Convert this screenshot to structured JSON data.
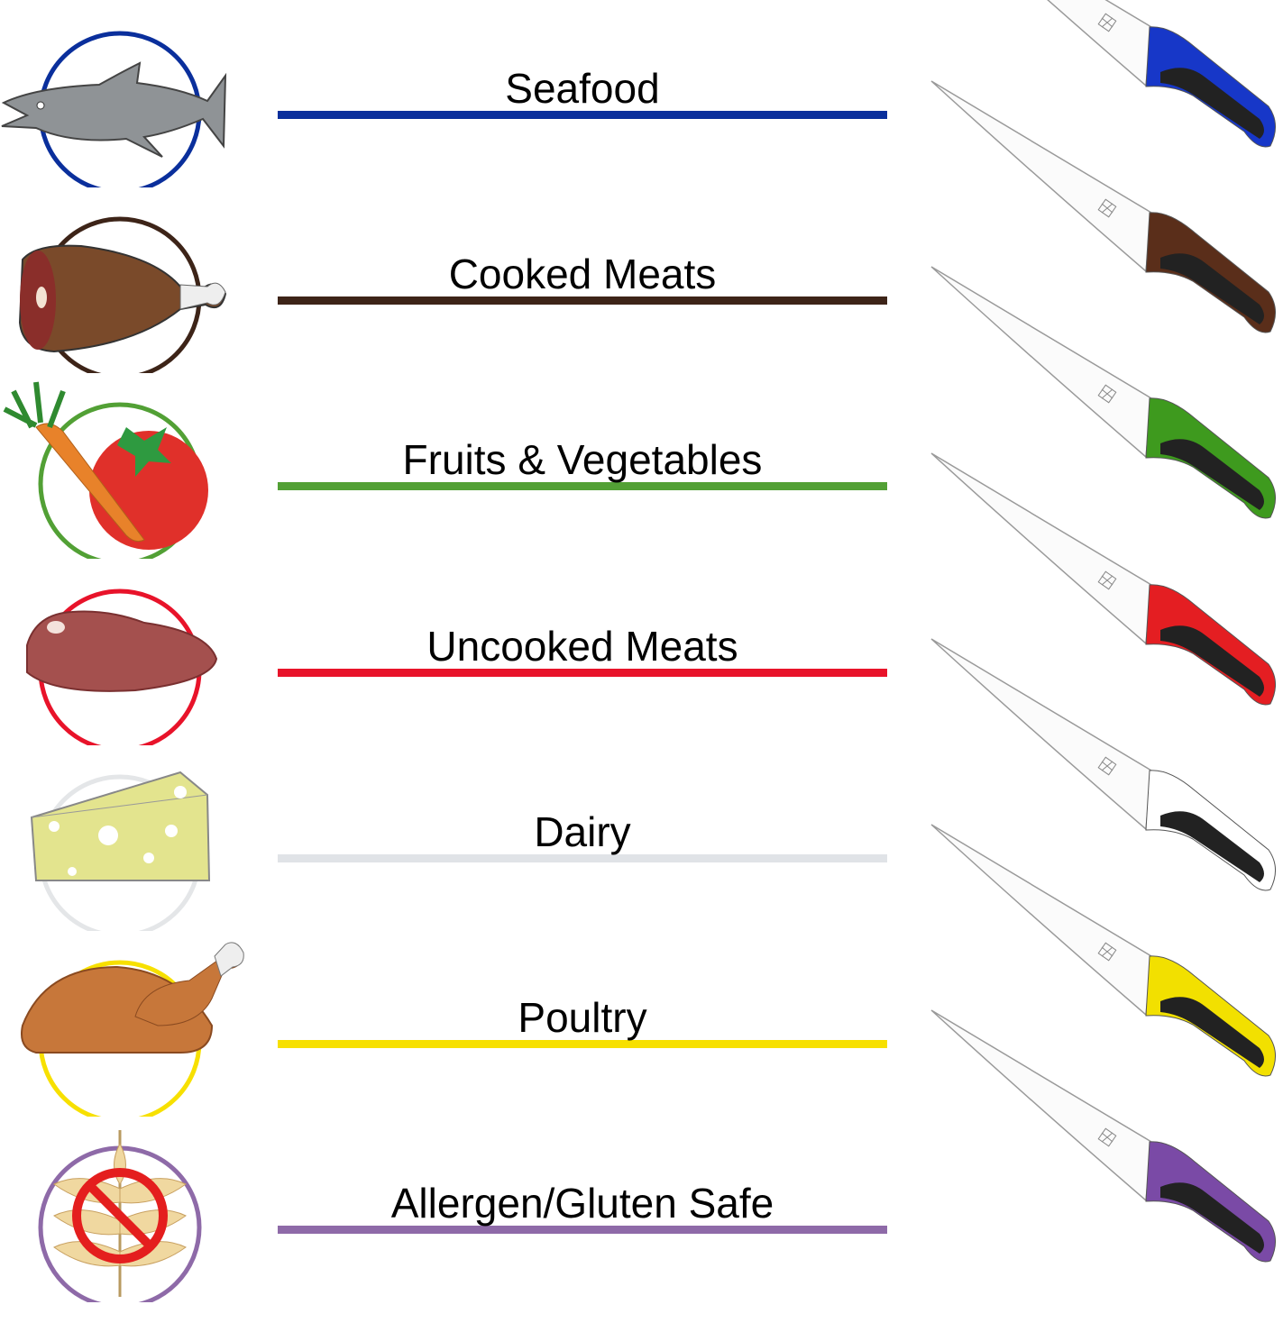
{
  "categories": [
    {
      "label": "Seafood",
      "icon": "fish-icon",
      "line_color": "#0a2f9c",
      "circle_color": "#0a2f9c",
      "handle_color": "#1737c8"
    },
    {
      "label": "Cooked Meats",
      "icon": "ham-icon",
      "line_color": "#3d2418",
      "circle_color": "#3d2418",
      "handle_color": "#5a2e1a"
    },
    {
      "label": "Fruits & Vegetables",
      "icon": "vegetables-icon",
      "line_color": "#52a035",
      "circle_color": "#52a035",
      "handle_color": "#3e9a1e"
    },
    {
      "label": "Uncooked Meats",
      "icon": "steak-icon",
      "line_color": "#e8132a",
      "circle_color": "#e8132a",
      "handle_color": "#e41e22"
    },
    {
      "label": "Dairy",
      "icon": "cheese-icon",
      "line_color": "#e0e3e7",
      "circle_color": "#e4e6e8",
      "handle_color": "#ffffff"
    },
    {
      "label": "Poultry",
      "icon": "turkey-icon",
      "line_color": "#f7e000",
      "circle_color": "#f7e000",
      "handle_color": "#f2e000"
    },
    {
      "label": "Allergen/Gluten Safe",
      "icon": "no-gluten-icon",
      "line_color": "#8e6aa8",
      "circle_color": "#8e6aa8",
      "handle_color": "#7a4aa6"
    }
  ]
}
